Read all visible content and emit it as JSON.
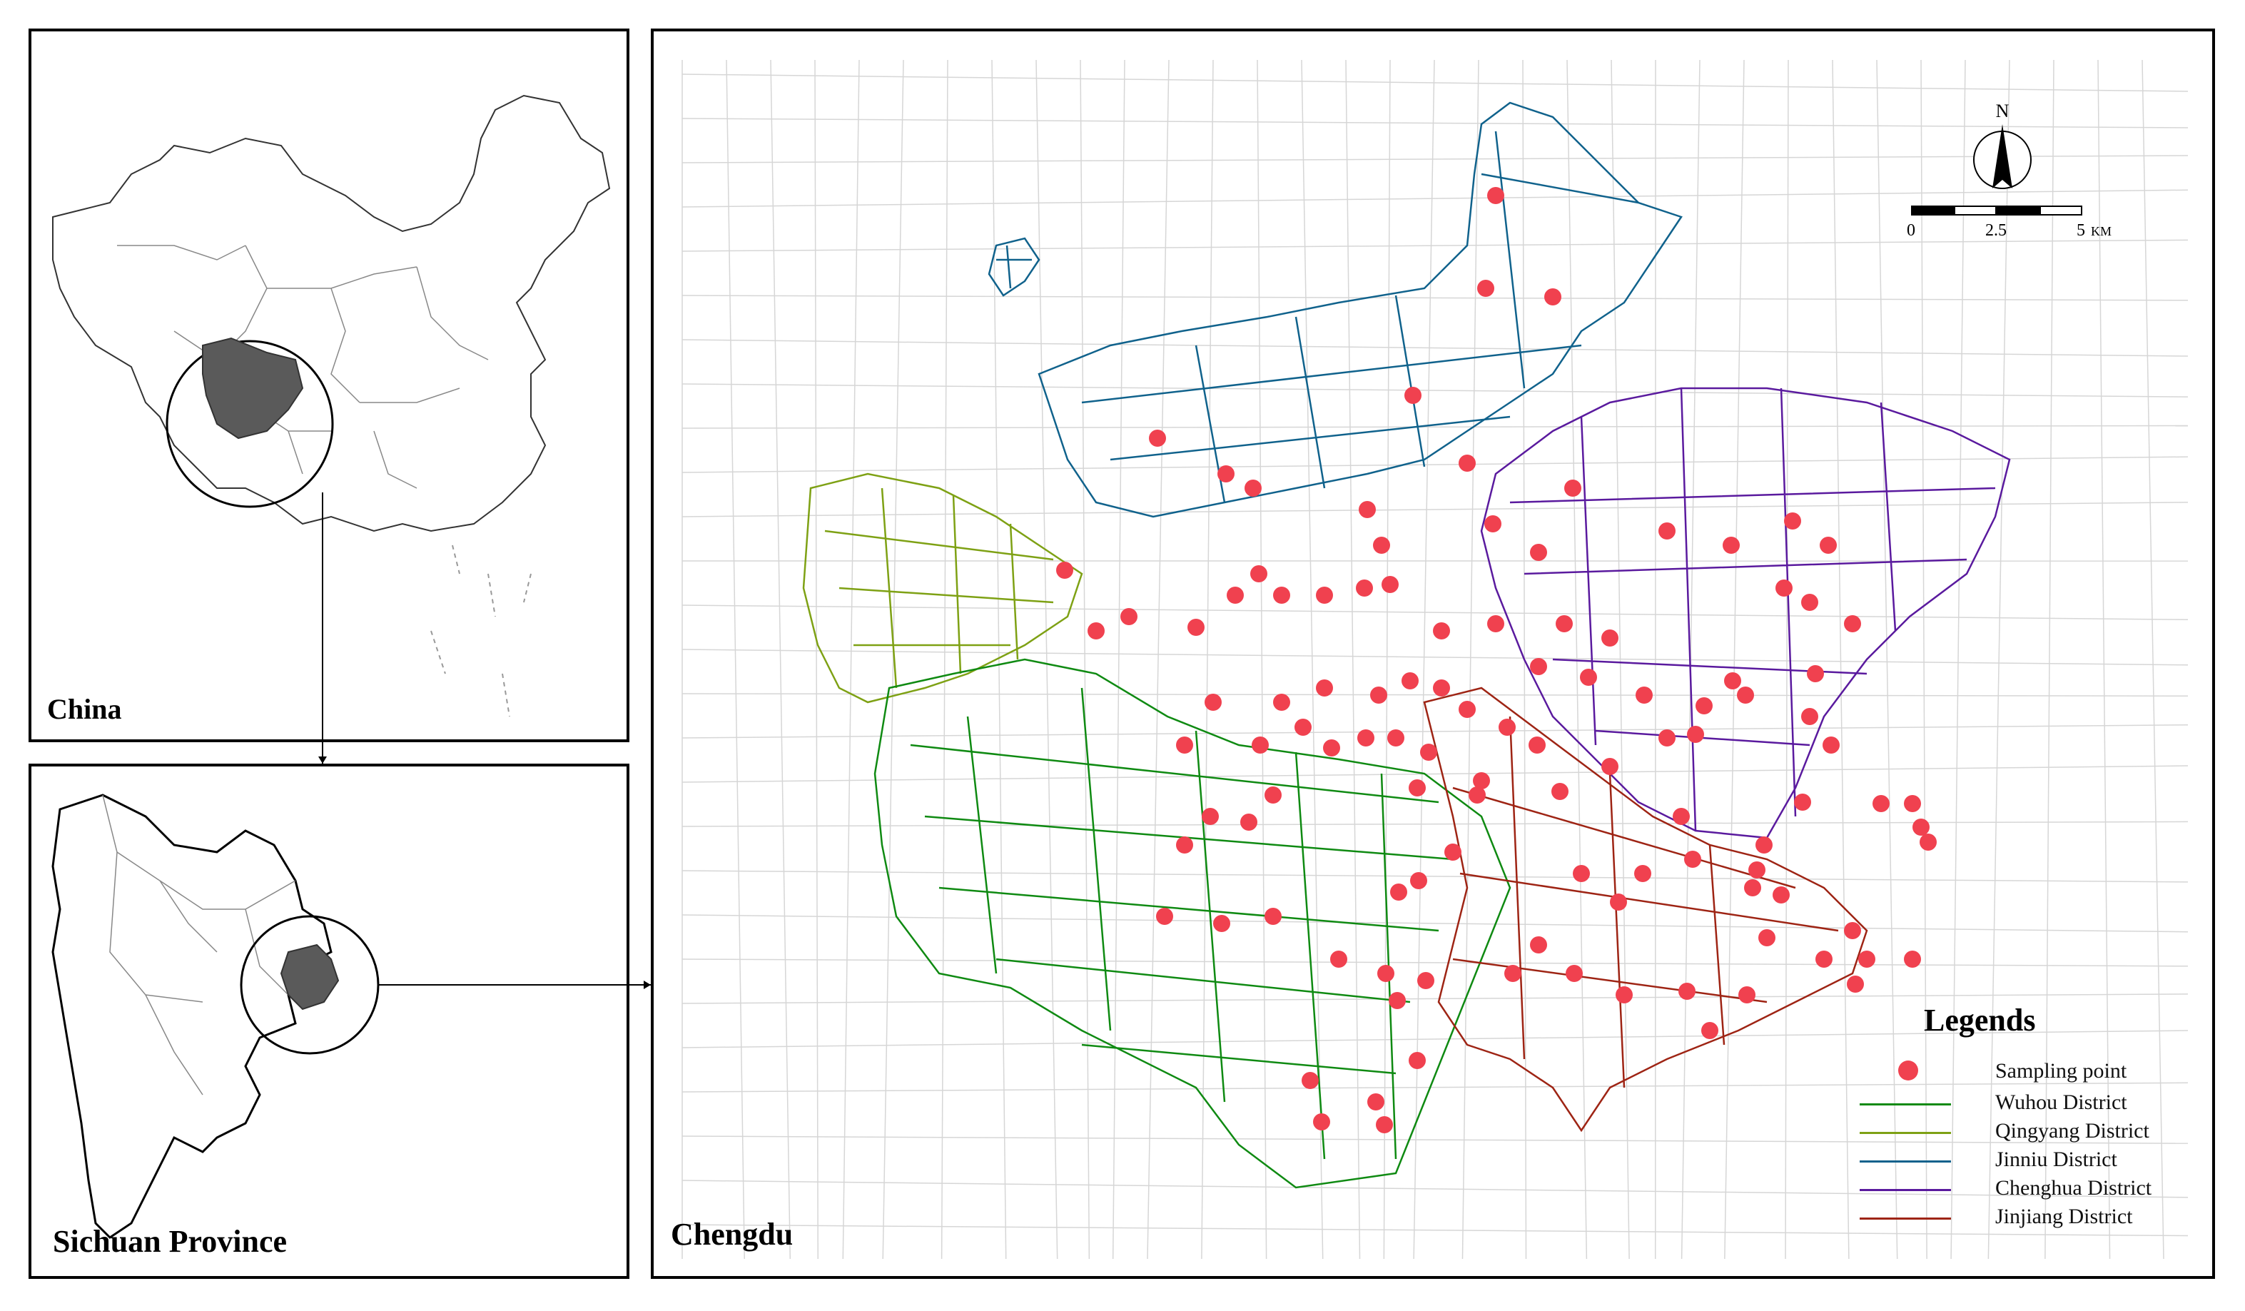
{
  "panels": {
    "china": {
      "title": "China"
    },
    "sichuan": {
      "title": "Sichuan Province"
    },
    "chengdu": {
      "title": "Chengdu"
    }
  },
  "north_arrow": {
    "label": "N"
  },
  "scale_bar": {
    "labels": [
      "0",
      "2.5",
      "5"
    ],
    "unit": "KM"
  },
  "legend": {
    "title": "Legends",
    "items": [
      {
        "label": "Sampling point",
        "symbol": "dot",
        "color": "#f0414f"
      },
      {
        "label": "Wuhou District",
        "symbol": "line",
        "color": "#0f8a12"
      },
      {
        "label": "Qingyang District",
        "symbol": "line",
        "color": "#7ea114"
      },
      {
        "label": "Jinniu District",
        "symbol": "line",
        "color": "#10628c"
      },
      {
        "label": "Chenghua District",
        "symbol": "line",
        "color": "#5a1a9e"
      },
      {
        "label": "Jinjiang District",
        "symbol": "line",
        "color": "#9e2414"
      }
    ]
  },
  "colors": {
    "province_fill": "#5a5a5a",
    "sampling_point": "#f0414f",
    "background_roads": "#d6d6d6"
  }
}
